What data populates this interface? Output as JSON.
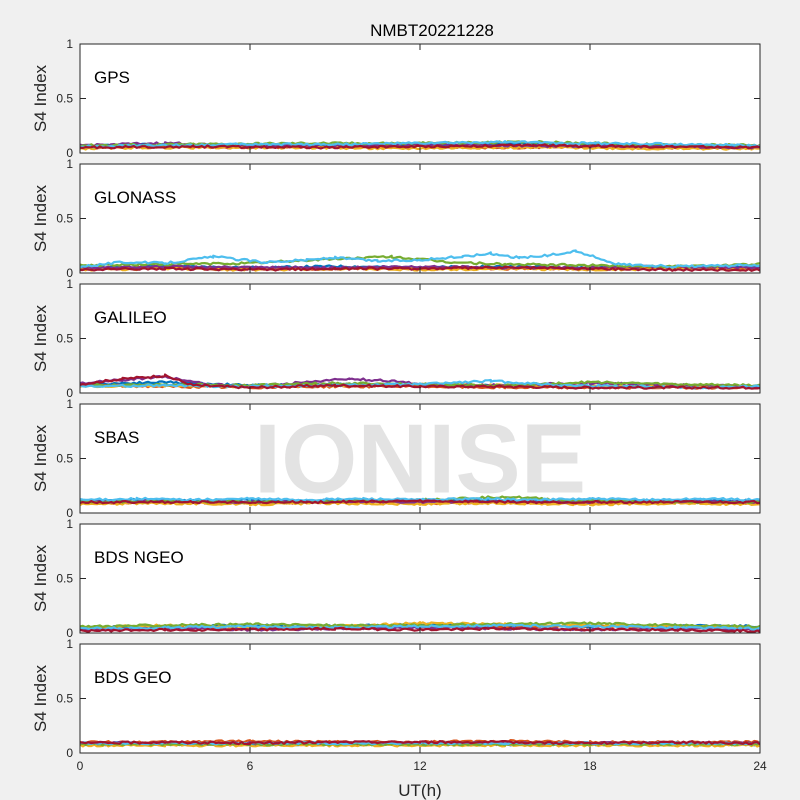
{
  "chart_data": {
    "type": "scatter",
    "title": "NMBT20221228",
    "xlabel": "UT(h)",
    "ylabel": "S4 Index",
    "xlim": [
      0,
      24
    ],
    "ylim": [
      0,
      1
    ],
    "xticks": [
      0,
      6,
      12,
      18,
      24
    ],
    "yticks": [
      0,
      0.5,
      1
    ],
    "ytick_labels": [
      "0",
      "0.5",
      "1"
    ],
    "grid": false,
    "watermark": "IONISE",
    "colors": [
      "#0072BD",
      "#D95319",
      "#EDB120",
      "#7E2F8E",
      "#77AC30",
      "#4DBEEE",
      "#A2142F"
    ],
    "panels": [
      {
        "label": "GPS",
        "series": [
          {
            "x": [
              0,
              2,
              4,
              6,
              8,
              10,
              12,
              14,
              16,
              18,
              20,
              22,
              24
            ],
            "y": [
              0.06,
              0.08,
              0.07,
              0.06,
              0.07,
              0.08,
              0.07,
              0.08,
              0.09,
              0.08,
              0.07,
              0.06,
              0.06
            ]
          },
          {
            "x": [
              0,
              3,
              6,
              9,
              12,
              15,
              18,
              21,
              24
            ],
            "y": [
              0.05,
              0.06,
              0.05,
              0.06,
              0.06,
              0.05,
              0.06,
              0.05,
              0.05
            ]
          },
          {
            "x": [
              0,
              2,
              5,
              8,
              11,
              14,
              17,
              20,
              24
            ],
            "y": [
              0.04,
              0.05,
              0.05,
              0.05,
              0.04,
              0.05,
              0.05,
              0.04,
              0.04
            ]
          },
          {
            "x": [
              0,
              3,
              6,
              9,
              12,
              15,
              18,
              21,
              24
            ],
            "y": [
              0.07,
              0.09,
              0.07,
              0.07,
              0.08,
              0.07,
              0.06,
              0.06,
              0.05
            ]
          },
          {
            "x": [
              0,
              4,
              8,
              12,
              16,
              20,
              24
            ],
            "y": [
              0.07,
              0.08,
              0.09,
              0.09,
              0.1,
              0.08,
              0.07
            ]
          },
          {
            "x": [
              0,
              3,
              6,
              9,
              12,
              15,
              18,
              21,
              24
            ],
            "y": [
              0.06,
              0.07,
              0.08,
              0.08,
              0.09,
              0.1,
              0.09,
              0.08,
              0.07
            ]
          },
          {
            "x": [
              0,
              4,
              8,
              12,
              16,
              20,
              24
            ],
            "y": [
              0.05,
              0.06,
              0.05,
              0.06,
              0.07,
              0.06,
              0.05
            ]
          }
        ]
      },
      {
        "label": "GLONASS",
        "series": [
          {
            "x": [
              0,
              3,
              6,
              9,
              12,
              15,
              18,
              21,
              24
            ],
            "y": [
              0.05,
              0.06,
              0.05,
              0.06,
              0.05,
              0.06,
              0.05,
              0.05,
              0.06
            ]
          },
          {
            "x": [
              0,
              3,
              6,
              9,
              12,
              15,
              18,
              21,
              24
            ],
            "y": [
              0.04,
              0.05,
              0.04,
              0.04,
              0.05,
              0.04,
              0.04,
              0.05,
              0.04
            ]
          },
          {
            "x": [
              0,
              3,
              6,
              9,
              12,
              15,
              18,
              21,
              24
            ],
            "y": [
              0.03,
              0.04,
              0.03,
              0.04,
              0.03,
              0.04,
              0.03,
              0.04,
              0.03
            ]
          },
          {
            "x": [
              0,
              3,
              6,
              9,
              12,
              15,
              18,
              21,
              24
            ],
            "y": [
              0.05,
              0.06,
              0.05,
              0.05,
              0.06,
              0.05,
              0.05,
              0.06,
              0.05
            ]
          },
          {
            "x": [
              0,
              3,
              6,
              9,
              11,
              13,
              15,
              18,
              21,
              24
            ],
            "y": [
              0.07,
              0.08,
              0.09,
              0.13,
              0.15,
              0.1,
              0.08,
              0.07,
              0.06,
              0.08
            ]
          },
          {
            "x": [
              0,
              1.5,
              3,
              4.7,
              6.5,
              8,
              9,
              10.5,
              12,
              13.5,
              14.5,
              15.5,
              16.5,
              17.5,
              19,
              21,
              24
            ],
            "y": [
              0.06,
              0.1,
              0.09,
              0.15,
              0.1,
              0.12,
              0.14,
              0.11,
              0.12,
              0.15,
              0.18,
              0.14,
              0.16,
              0.2,
              0.08,
              0.06,
              0.07
            ]
          },
          {
            "x": [
              0,
              3,
              6,
              9,
              12,
              15,
              18,
              21,
              24
            ],
            "y": [
              0.03,
              0.04,
              0.03,
              0.04,
              0.04,
              0.05,
              0.04,
              0.03,
              0.03
            ]
          }
        ]
      },
      {
        "label": "GALILEO",
        "series": [
          {
            "x": [
              0,
              3,
              6,
              9,
              12,
              15,
              18,
              21,
              24
            ],
            "y": [
              0.08,
              0.1,
              0.07,
              0.08,
              0.07,
              0.07,
              0.06,
              0.07,
              0.06
            ]
          },
          {
            "x": [
              0,
              3,
              6,
              9,
              12,
              15,
              18,
              21,
              24
            ],
            "y": [
              0.07,
              0.06,
              0.05,
              0.06,
              0.06,
              0.05,
              0.05,
              0.05,
              0.05
            ]
          },
          {
            "x": [
              0,
              3,
              6,
              9,
              12,
              15,
              18,
              21,
              24
            ],
            "y": [
              0.06,
              0.07,
              0.06,
              0.07,
              0.08,
              0.07,
              0.06,
              0.07,
              0.06
            ]
          },
          {
            "x": [
              0,
              1.5,
              3,
              4.5,
              6,
              8,
              9.5,
              11,
              12,
              14,
              16,
              18,
              20,
              22,
              24
            ],
            "y": [
              0.09,
              0.12,
              0.15,
              0.08,
              0.06,
              0.1,
              0.13,
              0.11,
              0.08,
              0.07,
              0.08,
              0.09,
              0.08,
              0.07,
              0.06
            ]
          },
          {
            "x": [
              0,
              3,
              6,
              9,
              12,
              15,
              18,
              21,
              24
            ],
            "y": [
              0.07,
              0.08,
              0.07,
              0.09,
              0.08,
              0.07,
              0.1,
              0.08,
              0.07
            ]
          },
          {
            "x": [
              0,
              3,
              6,
              9,
              12,
              14.5,
              17,
              20,
              22,
              24
            ],
            "y": [
              0.06,
              0.07,
              0.06,
              0.07,
              0.08,
              0.11,
              0.07,
              0.06,
              0.05,
              0.06
            ]
          },
          {
            "x": [
              0,
              1.5,
              3,
              4,
              6,
              9,
              12,
              15,
              18,
              21,
              24
            ],
            "y": [
              0.08,
              0.13,
              0.16,
              0.07,
              0.05,
              0.07,
              0.06,
              0.06,
              0.05,
              0.05,
              0.05
            ]
          }
        ]
      },
      {
        "label": "SBAS",
        "series": [
          {
            "x": [
              0,
              2,
              4,
              6,
              8,
              10,
              12,
              14,
              16,
              18,
              20,
              22,
              24
            ],
            "y": [
              0.11,
              0.12,
              0.11,
              0.12,
              0.11,
              0.12,
              0.11,
              0.12,
              0.11,
              0.12,
              0.11,
              0.12,
              0.11
            ]
          },
          {
            "x": [
              0,
              3,
              6,
              9,
              12,
              15,
              18,
              21,
              24
            ],
            "y": [
              0.09,
              0.1,
              0.09,
              0.1,
              0.09,
              0.1,
              0.09,
              0.1,
              0.09
            ]
          },
          {
            "x": [
              0,
              3,
              6,
              9,
              12,
              15,
              18,
              21,
              24
            ],
            "y": [
              0.08,
              0.09,
              0.08,
              0.09,
              0.08,
              0.09,
              0.08,
              0.09,
              0.08
            ]
          },
          {
            "x": [
              0,
              3,
              6,
              9,
              12,
              15,
              18,
              21,
              24
            ],
            "y": [
              0.1,
              0.11,
              0.1,
              0.11,
              0.1,
              0.11,
              0.1,
              0.11,
              0.1
            ]
          },
          {
            "x": [
              0,
              3,
              6,
              9,
              12,
              15,
              17,
              19,
              21,
              24
            ],
            "y": [
              0.1,
              0.11,
              0.1,
              0.11,
              0.12,
              0.15,
              0.12,
              0.11,
              0.1,
              0.1
            ]
          },
          {
            "x": [
              0,
              2,
              4,
              6,
              8,
              10,
              12,
              14,
              16,
              18,
              20,
              22,
              24
            ],
            "y": [
              0.12,
              0.13,
              0.12,
              0.13,
              0.12,
              0.13,
              0.12,
              0.13,
              0.12,
              0.13,
              0.12,
              0.13,
              0.12
            ]
          },
          {
            "x": [
              0,
              4,
              8,
              12,
              16,
              20,
              24
            ],
            "y": [
              0.1,
              0.1,
              0.1,
              0.11,
              0.1,
              0.1,
              0.1
            ]
          }
        ]
      },
      {
        "label": "BDS NGEO",
        "series": [
          {
            "x": [
              0,
              3,
              6,
              9,
              12,
              15,
              18,
              21,
              24
            ],
            "y": [
              0.05,
              0.06,
              0.07,
              0.06,
              0.08,
              0.07,
              0.06,
              0.07,
              0.06
            ]
          },
          {
            "x": [
              0,
              3,
              6,
              9,
              12,
              15,
              18,
              21,
              24
            ],
            "y": [
              0.04,
              0.05,
              0.04,
              0.05,
              0.06,
              0.05,
              0.06,
              0.05,
              0.05
            ]
          },
          {
            "x": [
              0,
              3,
              6,
              9,
              12,
              15,
              18,
              21,
              24
            ],
            "y": [
              0.05,
              0.07,
              0.05,
              0.06,
              0.09,
              0.08,
              0.07,
              0.06,
              0.05
            ]
          },
          {
            "x": [
              0,
              3,
              6,
              9,
              12,
              15,
              18,
              21,
              24
            ],
            "y": [
              0.03,
              0.04,
              0.03,
              0.04,
              0.05,
              0.04,
              0.03,
              0.04,
              0.03
            ]
          },
          {
            "x": [
              0,
              3,
              6,
              9,
              12,
              15,
              18,
              21,
              24
            ],
            "y": [
              0.06,
              0.07,
              0.08,
              0.07,
              0.07,
              0.08,
              0.09,
              0.07,
              0.06
            ]
          },
          {
            "x": [
              0,
              3,
              6,
              9,
              12,
              15,
              18,
              21,
              24
            ],
            "y": [
              0.04,
              0.05,
              0.06,
              0.05,
              0.06,
              0.07,
              0.06,
              0.05,
              0.04
            ]
          },
          {
            "x": [
              0,
              3,
              6,
              9,
              12,
              15,
              18,
              21,
              24
            ],
            "y": [
              0.02,
              0.03,
              0.03,
              0.04,
              0.03,
              0.04,
              0.03,
              0.03,
              0.02
            ]
          }
        ]
      },
      {
        "label": "BDS GEO",
        "series": [
          {
            "x": [
              0,
              3,
              6,
              9,
              12,
              15,
              18,
              21,
              24
            ],
            "y": [
              0.08,
              0.08,
              0.08,
              0.08,
              0.08,
              0.08,
              0.08,
              0.08,
              0.08
            ]
          },
          {
            "x": [
              0,
              3,
              6,
              9,
              12,
              15,
              18,
              21,
              24
            ],
            "y": [
              0.1,
              0.1,
              0.11,
              0.1,
              0.1,
              0.11,
              0.1,
              0.1,
              0.1
            ]
          },
          {
            "x": [
              0,
              3,
              6,
              9,
              12,
              15,
              18,
              21,
              24
            ],
            "y": [
              0.07,
              0.07,
              0.07,
              0.07,
              0.07,
              0.07,
              0.07,
              0.07,
              0.07
            ]
          },
          {
            "x": [
              0,
              3,
              6,
              9,
              12,
              15,
              18,
              21,
              24
            ],
            "y": [
              0.09,
              0.09,
              0.09,
              0.09,
              0.09,
              0.09,
              0.09,
              0.09,
              0.09
            ]
          },
          {
            "x": [
              0,
              3,
              6,
              9,
              12,
              15,
              18,
              21,
              24
            ],
            "y": [
              0.08,
              0.08,
              0.08,
              0.08,
              0.08,
              0.08,
              0.08,
              0.08,
              0.08
            ]
          },
          {
            "x": [
              0,
              3,
              6,
              9,
              12,
              15,
              18,
              21,
              24
            ],
            "y": [
              0.09,
              0.09,
              0.09,
              0.09,
              0.09,
              0.09,
              0.09,
              0.09,
              0.09
            ]
          },
          {
            "x": [
              0,
              3,
              6,
              9,
              12,
              15,
              18,
              21,
              24
            ],
            "y": [
              0.09,
              0.1,
              0.09,
              0.1,
              0.1,
              0.1,
              0.09,
              0.1,
              0.09
            ]
          }
        ]
      }
    ]
  }
}
